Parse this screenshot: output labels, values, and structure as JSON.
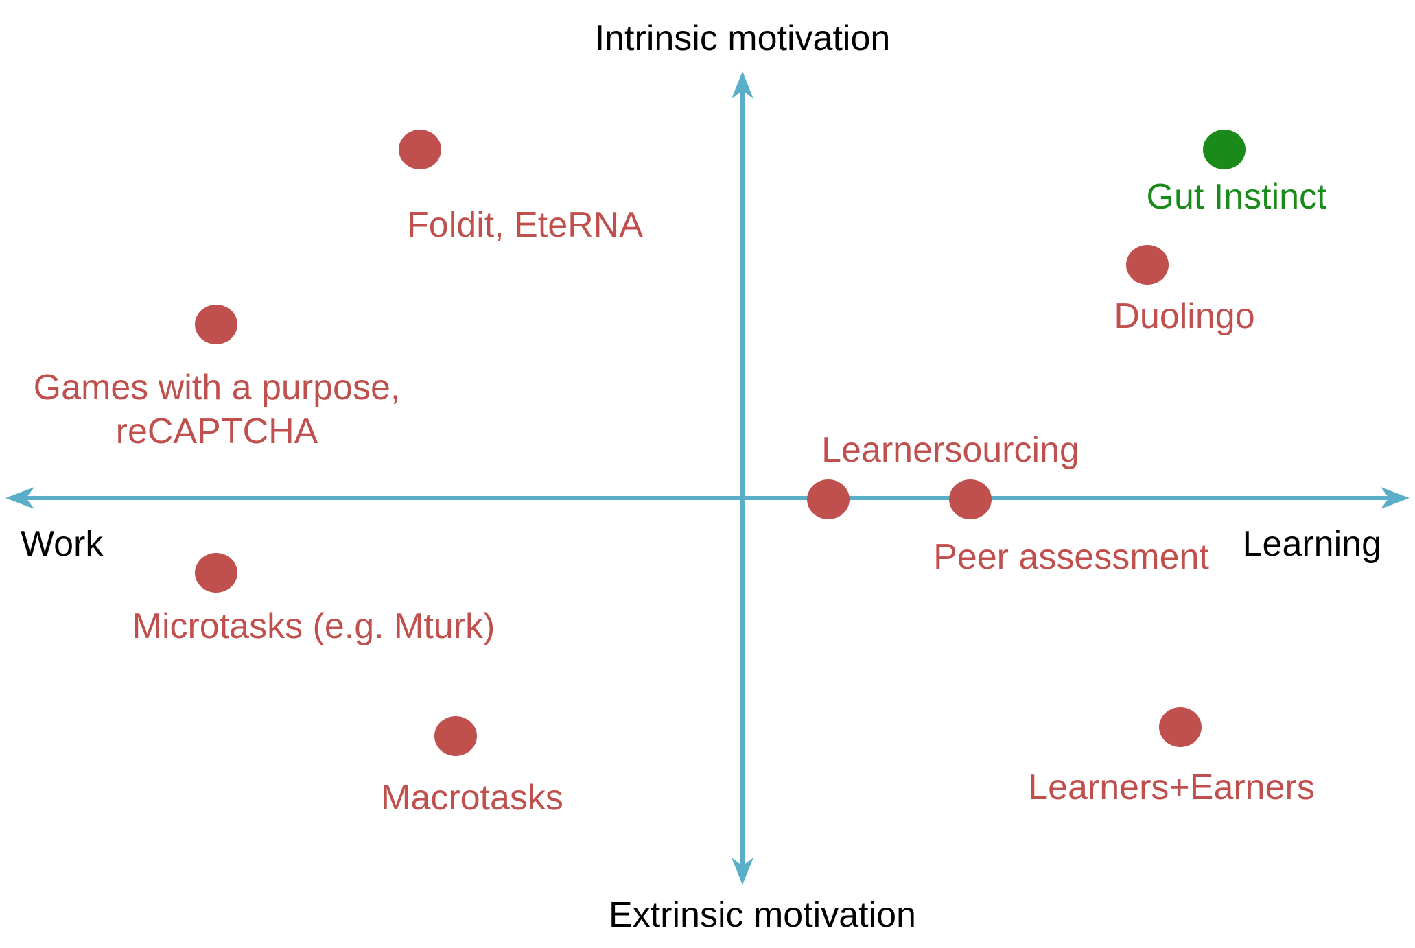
{
  "axes": {
    "top_label": "Intrinsic motivation",
    "bottom_label": "Extrinsic motivation",
    "left_label": "Work",
    "right_label": "Learning"
  },
  "colors": {
    "axis": "#5aaec8",
    "point": "#c0504d",
    "highlight": "#1a8a1a",
    "text": "#000000"
  },
  "points": [
    {
      "id": "foldit",
      "lines": [
        "Foldit, EteRNA"
      ],
      "highlight": false
    },
    {
      "id": "duolingo",
      "lines": [
        "Duolingo"
      ],
      "highlight": false
    },
    {
      "id": "gut-instinct",
      "lines": [
        "Gut Instinct"
      ],
      "highlight": true
    },
    {
      "id": "games",
      "lines": [
        "Games with a purpose,",
        "reCAPTCHA"
      ],
      "highlight": false
    },
    {
      "id": "learnersourcing",
      "lines": [
        "Learnersourcing"
      ],
      "highlight": false
    },
    {
      "id": "peer",
      "lines": [
        "Peer assessment"
      ],
      "highlight": false
    },
    {
      "id": "microtasks",
      "lines": [
        "Microtasks (e.g. Mturk)"
      ],
      "highlight": false
    },
    {
      "id": "macrotasks",
      "lines": [
        "Macrotasks"
      ],
      "highlight": false
    },
    {
      "id": "learners-earners",
      "lines": [
        "Learners+Earners"
      ],
      "highlight": false
    }
  ]
}
